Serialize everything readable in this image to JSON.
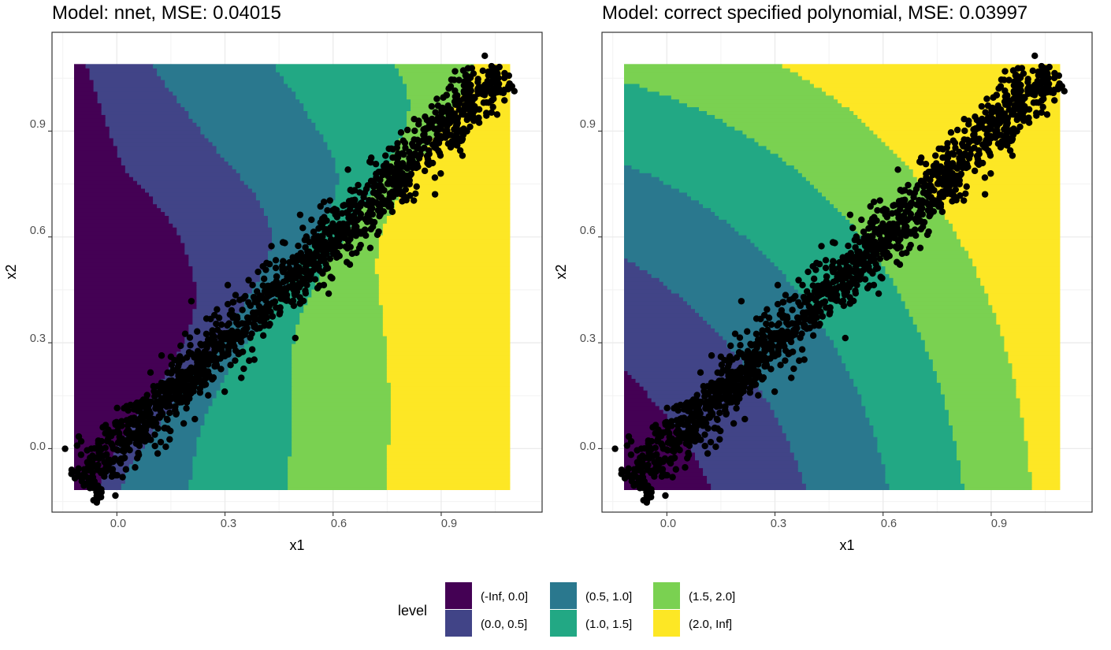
{
  "chart_data": [
    {
      "type": "contour",
      "title": "Model: nnet, MSE: 0.04015",
      "xlabel": "x1",
      "ylabel": "x2",
      "xlim": [
        -0.18,
        1.18
      ],
      "ylim": [
        -0.18,
        1.18
      ],
      "xticks": [
        "0.0",
        "0.3",
        "0.6",
        "0.9"
      ],
      "yticks": [
        "0.0",
        "0.3",
        "0.6",
        "0.9"
      ],
      "grid": true,
      "field_model": "nnet",
      "scatter": "dense point cloud along x2 = x1 for x1 in [-0.12, 1.08]"
    },
    {
      "type": "contour",
      "title": "Model: correct specified polynomial, MSE: 0.03997",
      "xlabel": "x1",
      "ylabel": "x2",
      "xlim": [
        -0.18,
        1.18
      ],
      "ylim": [
        -0.18,
        1.18
      ],
      "xticks": [
        "0.0",
        "0.3",
        "0.6",
        "0.9"
      ],
      "yticks": [
        "0.0",
        "0.3",
        "0.6",
        "0.9"
      ],
      "grid": true,
      "field_model": "polynomial",
      "scatter": "dense point cloud along x2 = x1 for x1 in [-0.12, 1.08]"
    }
  ],
  "legend": {
    "title": "level",
    "position": "bottom",
    "items": [
      {
        "label": "(-Inf, 0.0]",
        "color": "#440154"
      },
      {
        "label": "(0.0, 0.5]",
        "color": "#414487"
      },
      {
        "label": "(0.5, 1.0]",
        "color": "#2A788E"
      },
      {
        "label": "(1.0, 1.5]",
        "color": "#22A884"
      },
      {
        "label": "(1.5, 2.0]",
        "color": "#7AD151"
      },
      {
        "label": "(2.0, Inf]",
        "color": "#FDE725"
      }
    ]
  }
}
